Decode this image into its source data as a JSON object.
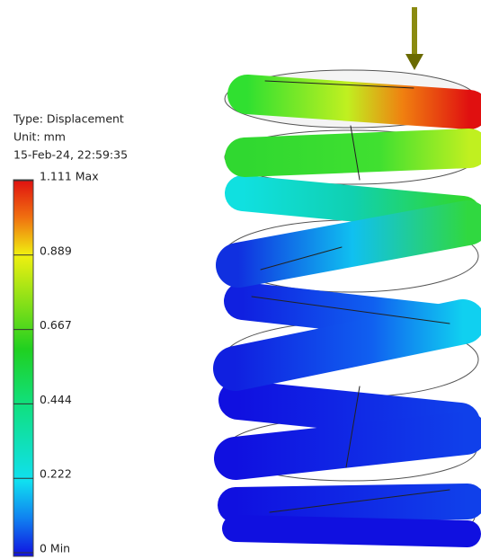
{
  "info": {
    "type": "Type: Displacement",
    "unit": "Unit: mm",
    "date": "15-Feb-24, 22:59:35"
  },
  "legend": {
    "labels": [
      "1.111 Max",
      "0.889",
      "0.667",
      "0.444",
      "0.222",
      "0 Min"
    ]
  }
}
